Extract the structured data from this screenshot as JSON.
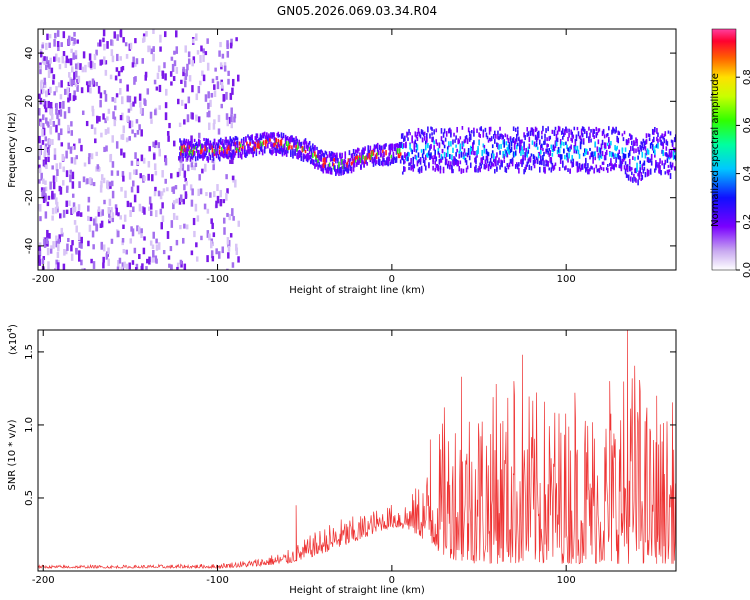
{
  "title": "GN05.2026.069.03.34.R04",
  "colors": {
    "snr_line": "#ee3333",
    "axis": "#000000"
  },
  "chart_data": [
    {
      "type": "heatmap",
      "name": "spectrogram",
      "xlabel": "Height of straight line (km)",
      "ylabel": "Frequency (Hz)",
      "xlim": [
        -203,
        163
      ],
      "ylim": [
        -50,
        50
      ],
      "x_ticks": [
        -200,
        -100,
        0,
        100
      ],
      "x_tick_labels": [
        "-200",
        "-100",
        "0",
        "100"
      ],
      "y_ticks": [
        -40,
        -20,
        0,
        20,
        40
      ],
      "y_tick_labels": [
        "-40",
        "-20",
        "0",
        "20",
        "40"
      ],
      "ridge": {
        "x": [
          -122,
          -110,
          -100,
          -90,
          -80,
          -70,
          -60,
          -50,
          -40,
          -30,
          -20,
          -10,
          0,
          10,
          20,
          30,
          40,
          50,
          60,
          70,
          80,
          90,
          100,
          110,
          120,
          130,
          140,
          150,
          160
        ],
        "y": [
          0,
          0,
          0,
          1,
          2,
          3,
          2,
          0,
          -5,
          -6,
          -4,
          -2,
          -2,
          -1,
          0,
          0,
          0,
          0,
          0,
          0,
          0,
          0,
          0,
          0,
          0,
          0,
          -5,
          0,
          -2
        ]
      },
      "colorbar": {
        "label": "Normalized spectral amplitude",
        "range": [
          0,
          1
        ],
        "ticks": [
          0,
          0.2,
          0.4,
          0.6,
          0.8
        ],
        "tick_labels": [
          "0.0",
          "0.2",
          "0.4",
          "0.6",
          "0.8"
        ]
      }
    },
    {
      "type": "line",
      "name": "snr",
      "xlabel": "Height of straight line (km)",
      "ylabel": "SNR (10 * v/v)",
      "scale_label": "(x10",
      "scale_exponent": "4",
      "xlim": [
        -203,
        163
      ],
      "ylim": [
        0,
        1.65
      ],
      "x_ticks": [
        -200,
        -100,
        0,
        100
      ],
      "x_tick_labels": [
        "-200",
        "-100",
        "0",
        "100"
      ],
      "y_ticks": [
        0.5,
        1.0,
        1.5
      ],
      "y_tick_labels": [
        "0.5",
        "1.0",
        "1.5"
      ],
      "envelope": {
        "x": [
          -203,
          -150,
          -100,
          -80,
          -60,
          -50,
          -40,
          -30,
          -20,
          -10,
          0,
          10,
          20,
          25,
          30,
          40,
          50,
          60,
          70,
          80,
          90,
          100,
          110,
          120,
          130,
          140,
          150,
          163
        ],
        "y_low": [
          0.02,
          0.02,
          0.02,
          0.03,
          0.05,
          0.08,
          0.12,
          0.16,
          0.2,
          0.26,
          0.3,
          0.28,
          0.2,
          0.15,
          0.1,
          0.06,
          0.05,
          0.05,
          0.05,
          0.05,
          0.05,
          0.05,
          0.05,
          0.05,
          0.05,
          0.05,
          0.05,
          0.05
        ],
        "y_high": [
          0.04,
          0.04,
          0.05,
          0.08,
          0.14,
          0.22,
          0.3,
          0.36,
          0.38,
          0.42,
          0.46,
          0.5,
          0.7,
          0.9,
          1.05,
          1.2,
          1.25,
          1.2,
          1.3,
          1.25,
          1.2,
          1.15,
          1.2,
          1.15,
          1.3,
          1.5,
          1.0,
          1.2
        ]
      },
      "peaks": [
        {
          "x": -55,
          "y": 0.45
        },
        {
          "x": 22,
          "y": 0.9
        },
        {
          "x": 30,
          "y": 1.12
        },
        {
          "x": 40,
          "y": 1.33
        },
        {
          "x": 60,
          "y": 1.28
        },
        {
          "x": 70,
          "y": 1.3
        },
        {
          "x": 75,
          "y": 1.48
        },
        {
          "x": 105,
          "y": 1.22
        },
        {
          "x": 125,
          "y": 1.3
        },
        {
          "x": 135,
          "y": 1.65
        },
        {
          "x": 152,
          "y": 1.2
        }
      ]
    }
  ]
}
